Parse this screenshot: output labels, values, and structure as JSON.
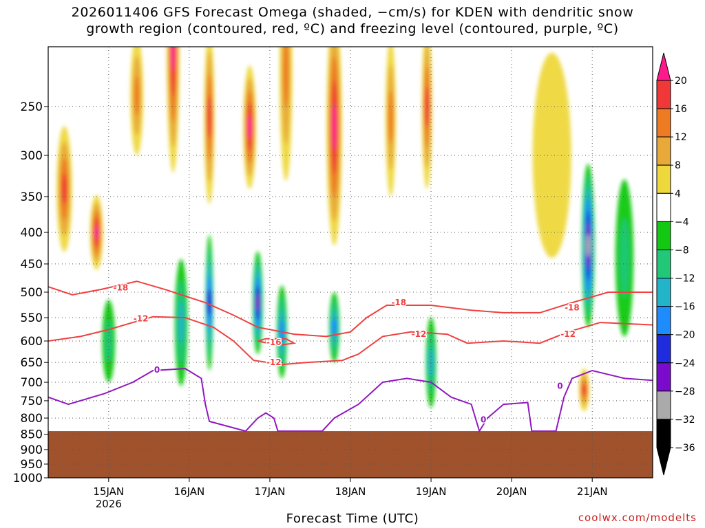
{
  "title": {
    "line1": "2026011406 GFS Forecast Omega (shaded, −cm/s) for KDEN with dendritic snow",
    "line2": "growth region (contoured, red, ºC) and freezing level (contoured, purple, ºC)"
  },
  "xlabel": "Forecast Time (UTC)",
  "credit": "coolwx.com/modelts",
  "chart_data": {
    "type": "heatmap",
    "y_axis": {
      "label": "",
      "ticks": [
        250,
        300,
        350,
        400,
        450,
        500,
        550,
        600,
        650,
        700,
        750,
        800,
        850,
        900,
        950,
        1000
      ],
      "range": [
        1000,
        200
      ],
      "scale": "log-pressure"
    },
    "x_axis": {
      "ticks": [
        {
          "label": "15JAN",
          "sub": "2026",
          "day": 15
        },
        {
          "label": "16JAN",
          "sub": "",
          "day": 16
        },
        {
          "label": "17JAN",
          "sub": "",
          "day": 17
        },
        {
          "label": "18JAN",
          "sub": "",
          "day": 18
        },
        {
          "label": "19JAN",
          "sub": "",
          "day": 19
        },
        {
          "label": "20JAN",
          "sub": "",
          "day": 20
        },
        {
          "label": "21JAN",
          "sub": "",
          "day": 21
        }
      ],
      "range_days": [
        14.25,
        21.75
      ]
    },
    "grid": true,
    "colorbar": {
      "labels": [
        "20",
        "16",
        "12",
        "8",
        "4",
        "−4",
        "−8",
        "−12",
        "−16",
        "−20",
        "−24",
        "−28",
        "−32",
        "−36"
      ],
      "colors": [
        "#ff1a8c",
        "#f03838",
        "#ee7a22",
        "#e8a93a",
        "#eed83c",
        "#ffffff",
        "#12c812",
        "#20c878",
        "#22b4c8",
        "#1e8cff",
        "#1e2cde",
        "#7a0acc",
        "#aaaaaa",
        "#000000"
      ]
    },
    "ground_color": "#a0522d",
    "ground_level_hpa": 840,
    "omega_regions": [
      {
        "day": 14.45,
        "p": 340,
        "dd": 0.06,
        "dp": 90,
        "value": 16
      },
      {
        "day": 14.85,
        "p": 400,
        "dd": 0.05,
        "dp": 60,
        "value": 20
      },
      {
        "day": 15.35,
        "p": 240,
        "dd": 0.05,
        "dp": 60,
        "value": 14
      },
      {
        "day": 15.8,
        "p": 200,
        "dd": 0.05,
        "dp": 120,
        "value": 20
      },
      {
        "day": 16.25,
        "p": 260,
        "dd": 0.04,
        "dp": 100,
        "value": 16
      },
      {
        "day": 16.75,
        "p": 270,
        "dd": 0.05,
        "dp": 70,
        "value": 20
      },
      {
        "day": 17.2,
        "p": 220,
        "dd": 0.05,
        "dp": 110,
        "value": 14
      },
      {
        "day": 17.8,
        "p": 270,
        "dd": 0.06,
        "dp": 150,
        "value": 22
      },
      {
        "day": 18.5,
        "p": 260,
        "dd": 0.04,
        "dp": 90,
        "value": 14
      },
      {
        "day": 18.95,
        "p": 250,
        "dd": 0.04,
        "dp": 90,
        "value": 18
      },
      {
        "day": 15.0,
        "p": 600,
        "dd": 0.05,
        "dp": 100,
        "value": -8
      },
      {
        "day": 15.9,
        "p": 560,
        "dd": 0.05,
        "dp": 150,
        "value": -14
      },
      {
        "day": 16.25,
        "p": 520,
        "dd": 0.03,
        "dp": 150,
        "value": -22
      },
      {
        "day": 16.85,
        "p": 520,
        "dd": 0.04,
        "dp": 110,
        "value": -24
      },
      {
        "day": 17.15,
        "p": 580,
        "dd": 0.04,
        "dp": 110,
        "value": -18
      },
      {
        "day": 17.8,
        "p": 570,
        "dd": 0.04,
        "dp": 80,
        "value": -18
      },
      {
        "day": 19.0,
        "p": 650,
        "dd": 0.04,
        "dp": 120,
        "value": -12
      },
      {
        "day": 20.95,
        "p": 400,
        "dd": 0.03,
        "dp": 90,
        "value": -36
      },
      {
        "day": 20.95,
        "p": 420,
        "dd": 0.05,
        "dp": 150,
        "value": -28
      },
      {
        "day": 21.4,
        "p": 440,
        "dd": 0.07,
        "dp": 150,
        "value": -10
      },
      {
        "day": 20.9,
        "p": 720,
        "dd": 0.04,
        "dp": 60,
        "value": 18
      },
      {
        "day": 20.5,
        "p": 300,
        "dd": 0.15,
        "dp": 140,
        "value": 4
      }
    ],
    "contours": [
      {
        "label": "-18",
        "color": "#f04040",
        "points": [
          [
            14.25,
            490
          ],
          [
            14.55,
            505
          ],
          [
            14.9,
            495
          ],
          [
            15.35,
            480
          ],
          [
            15.7,
            495
          ],
          [
            16.2,
            520
          ],
          [
            16.55,
            545
          ],
          [
            16.85,
            570
          ],
          [
            17.3,
            585
          ],
          [
            17.7,
            590
          ],
          [
            18.0,
            580
          ],
          [
            18.2,
            550
          ],
          [
            18.45,
            525
          ],
          [
            19.0,
            525
          ],
          [
            19.5,
            535
          ],
          [
            19.9,
            540
          ],
          [
            20.35,
            540
          ],
          [
            20.75,
            520
          ],
          [
            21.2,
            500
          ],
          [
            21.75,
            500
          ]
        ],
        "label_at": [
          [
            15.15,
            492
          ],
          [
            18.6,
            520
          ],
          [
            20.75,
            530
          ]
        ]
      },
      {
        "label": "-12",
        "color": "#f04040",
        "points": [
          [
            14.25,
            600
          ],
          [
            14.65,
            590
          ],
          [
            15.0,
            575
          ],
          [
            15.3,
            560
          ],
          [
            15.55,
            548
          ],
          [
            15.95,
            550
          ],
          [
            16.3,
            570
          ],
          [
            16.55,
            600
          ],
          [
            16.8,
            645
          ],
          [
            17.15,
            655
          ],
          [
            17.45,
            650
          ],
          [
            17.9,
            645
          ],
          [
            18.1,
            630
          ],
          [
            18.4,
            590
          ],
          [
            18.75,
            580
          ],
          [
            19.2,
            585
          ],
          [
            19.45,
            605
          ],
          [
            19.9,
            600
          ],
          [
            20.35,
            605
          ],
          [
            20.7,
            580
          ],
          [
            21.1,
            560
          ],
          [
            21.75,
            565
          ]
        ],
        "label_at": [
          [
            15.4,
            552
          ],
          [
            17.05,
            650
          ],
          [
            18.85,
            585
          ],
          [
            20.7,
            585
          ]
        ]
      },
      {
        "label": "-16",
        "color": "#f04040",
        "points": [
          [
            16.85,
            600
          ],
          [
            17.1,
            610
          ],
          [
            17.3,
            605
          ],
          [
            17.2,
            595
          ],
          [
            16.95,
            595
          ],
          [
            16.85,
            600
          ]
        ],
        "label_at": [
          [
            17.05,
            603
          ]
        ]
      },
      {
        "label": "0",
        "color": "#9018c0",
        "points": [
          [
            14.25,
            740
          ],
          [
            14.5,
            760
          ],
          [
            14.95,
            730
          ],
          [
            15.3,
            700
          ],
          [
            15.55,
            670
          ],
          [
            15.95,
            665
          ],
          [
            16.15,
            690
          ],
          [
            16.2,
            760
          ],
          [
            16.25,
            810
          ],
          [
            16.7,
            840
          ],
          [
            16.85,
            800
          ],
          [
            16.95,
            785
          ],
          [
            17.05,
            800
          ],
          [
            17.1,
            840
          ],
          [
            17.65,
            840
          ],
          [
            17.8,
            800
          ],
          [
            18.1,
            760
          ],
          [
            18.4,
            700
          ],
          [
            18.7,
            690
          ],
          [
            19.0,
            700
          ],
          [
            19.25,
            740
          ],
          [
            19.5,
            760
          ],
          [
            19.6,
            840
          ],
          [
            19.7,
            800
          ],
          [
            19.9,
            760
          ],
          [
            20.2,
            755
          ],
          [
            20.25,
            840
          ],
          [
            20.55,
            840
          ],
          [
            20.65,
            740
          ],
          [
            20.75,
            690
          ],
          [
            21.0,
            670
          ],
          [
            21.4,
            690
          ],
          [
            21.75,
            695
          ]
        ],
        "label_at": [
          [
            15.6,
            668
          ],
          [
            19.65,
            805
          ],
          [
            20.6,
            710
          ]
        ]
      }
    ]
  }
}
